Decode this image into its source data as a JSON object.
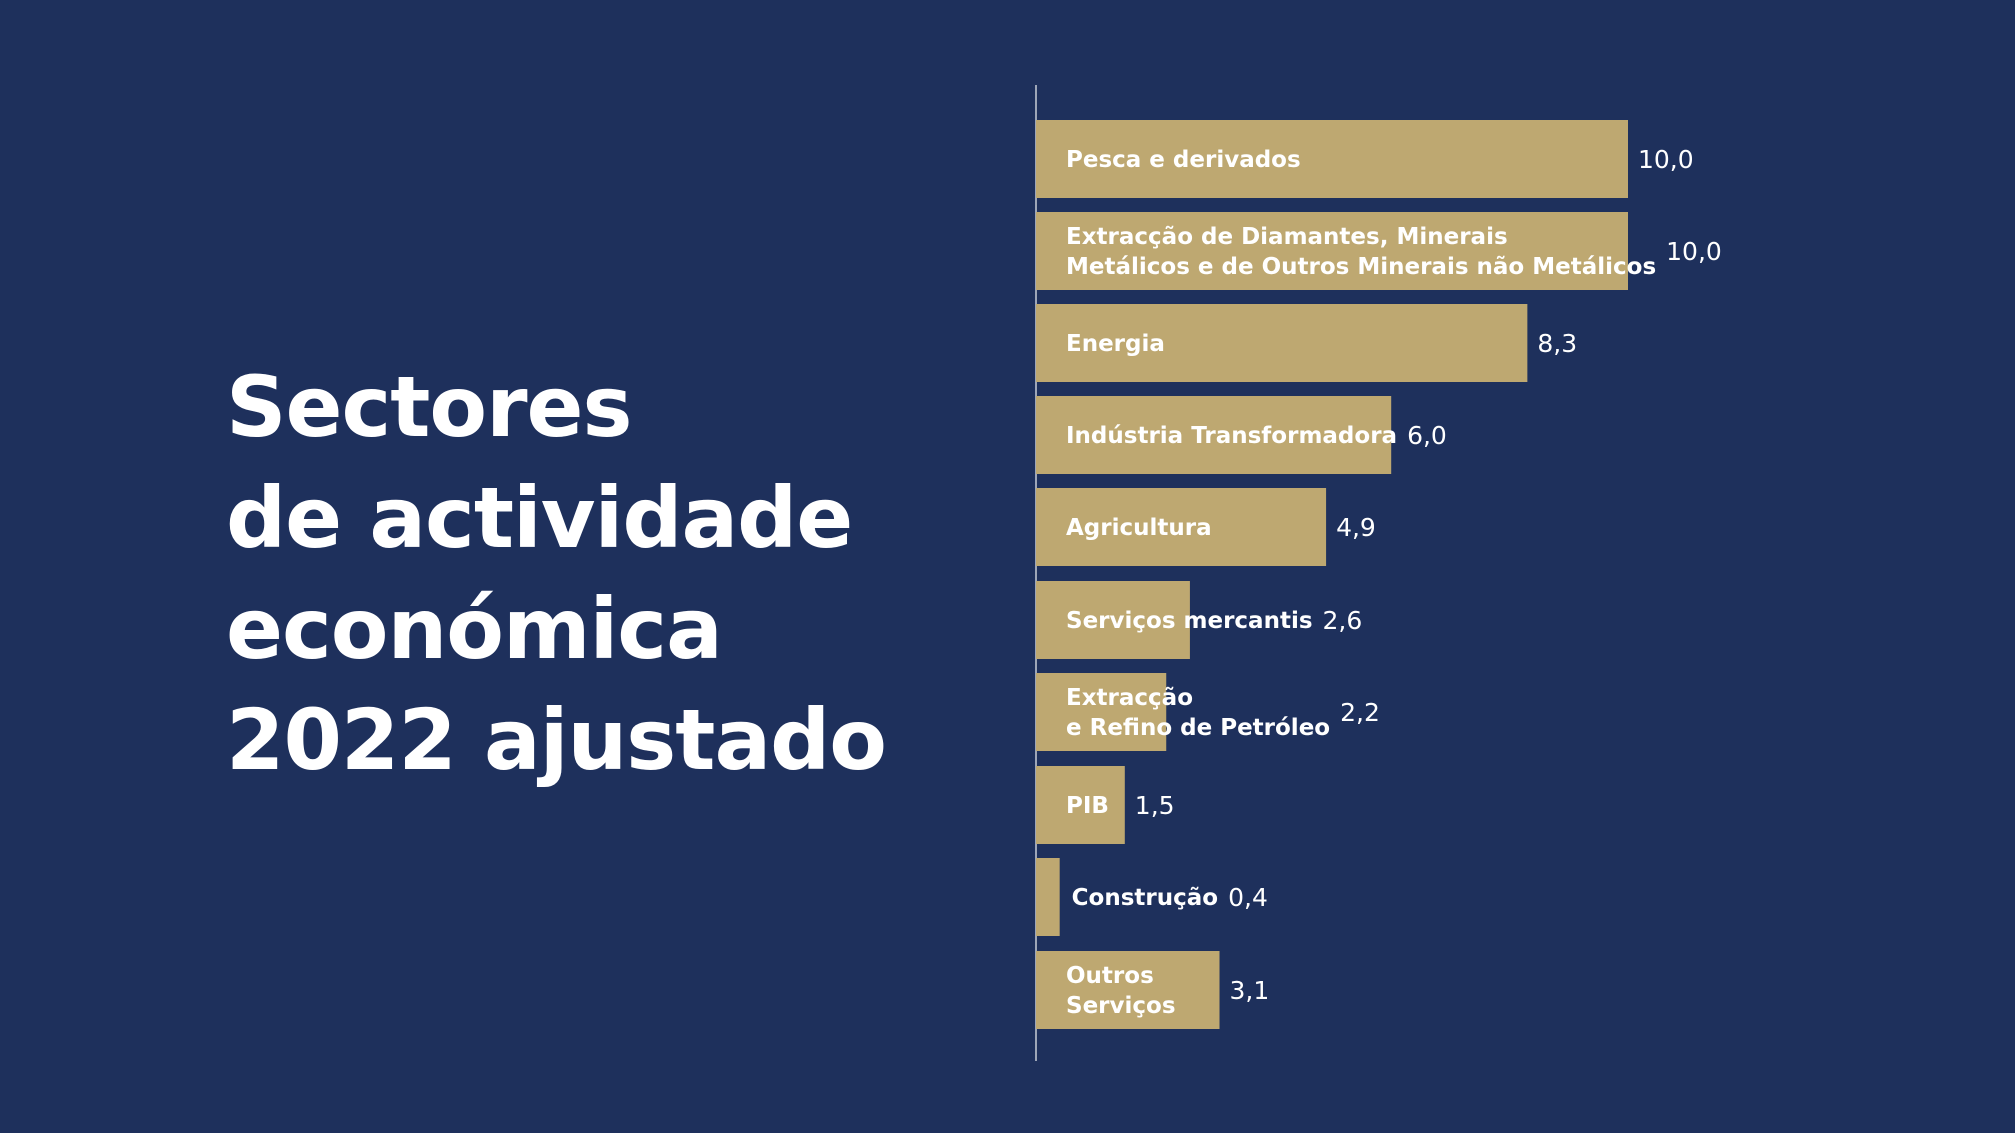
{
  "title_lines": [
    "Sectores",
    "de actividade",
    "económica",
    "2022 ajustado"
  ],
  "colors": {
    "background": "#1e305c",
    "bar": "#bea871",
    "axis": "#c9cdd6",
    "text": "#ffffff"
  },
  "chart_data": {
    "type": "bar",
    "orientation": "horizontal",
    "title": "Sectores de actividade económica 2022 ajustado",
    "categories": [
      "Pesca e derivados",
      "Extracção de Diamantes, Minerais Metálicos e de Outros Minerais não Metálicos",
      "Energia",
      "Indústria Transformadora",
      "Agricultura",
      "Serviços mercantis",
      "Extracção e Refino de Petróleo",
      "PIB",
      "Construção",
      "Outros Serviços"
    ],
    "category_lines": [
      [
        "Pesca e derivados"
      ],
      [
        "Extracção de Diamantes, Minerais",
        "Metálicos e de Outros Minerais não Metálicos"
      ],
      [
        "Energia"
      ],
      [
        "Indústria Transformadora"
      ],
      [
        "Agricultura"
      ],
      [
        "Serviços mercantis"
      ],
      [
        "Extracção",
        "e Refino de Petróleo"
      ],
      [
        "PIB"
      ],
      [
        "Construção"
      ],
      [
        "Outros",
        "Serviços"
      ]
    ],
    "values": [
      10.0,
      10.0,
      8.3,
      6.0,
      4.9,
      2.6,
      2.2,
      1.5,
      0.4,
      3.1
    ],
    "value_labels": [
      "10,0",
      "10,0",
      "8,3",
      "6,0",
      "4,9",
      "2,6",
      "2,2",
      "1,5",
      "0,4",
      "3,1"
    ],
    "xlim": [
      0,
      10
    ],
    "grid": false,
    "legend": "none"
  }
}
